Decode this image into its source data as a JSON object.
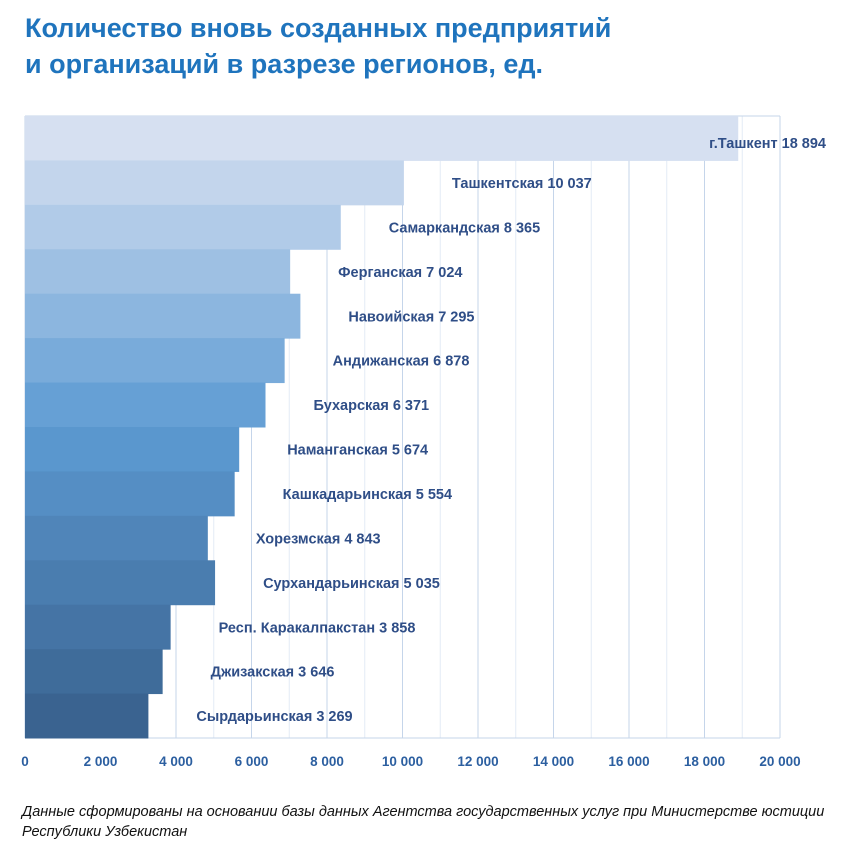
{
  "chart_data": {
    "type": "bar",
    "orientation": "horizontal",
    "title_line1": "Количество вновь созданных предприятий",
    "title_line2": "и организаций в разрезе регионов, ед.",
    "categories": [
      "г.Ташкент",
      "Ташкентская",
      "Самаркандская",
      "Ферганская",
      "Навоийская",
      "Андижанская",
      "Бухарская",
      "Наманганская",
      "Кашкадарьинская",
      "Хорезмская",
      "Сурхандарьинская",
      "Респ. Каракалпакстан",
      "Джизакская",
      "Сырдарьинская"
    ],
    "values": [
      18894,
      10037,
      8365,
      7024,
      7295,
      6878,
      6371,
      5674,
      5554,
      4843,
      5035,
      3858,
      3646,
      3269
    ],
    "data_labels": [
      "г.Ташкент 18 894",
      "Ташкентская 10 037",
      "Самаркандская 8 365",
      "Ферганская 7 024",
      "Навоийская 7 295",
      "Андижанская 6 878",
      "Бухарская 6 371",
      "Наманганская 5 674",
      "Кашкадарьинская 5 554",
      "Хорезмская 4 843",
      "Сурхандарьинская 5 035",
      "Респ. Каракалпакстан 3 858",
      "Джизакская 3 646",
      "Сырдарьинская 3 269"
    ],
    "xlim": [
      0,
      20000
    ],
    "xticks": [
      0,
      2000,
      4000,
      6000,
      8000,
      10000,
      12000,
      14000,
      16000,
      18000,
      20000
    ],
    "xtick_labels": [
      "0",
      "2 000",
      "4 000",
      "6 000",
      "8 000",
      "10 000",
      "12 000",
      "14 000",
      "16 000",
      "18 000",
      "20 000"
    ],
    "grid": true,
    "xlabel": "",
    "ylabel": "",
    "colors": {
      "top": "#d6e0f1",
      "middle": "#5d9bd3",
      "bottom": "#3a6390"
    }
  },
  "footnote": "Данные сформированы на основании базы данных Агентства государственных услуг при Министерстве юстиции Республики Узбекистан"
}
